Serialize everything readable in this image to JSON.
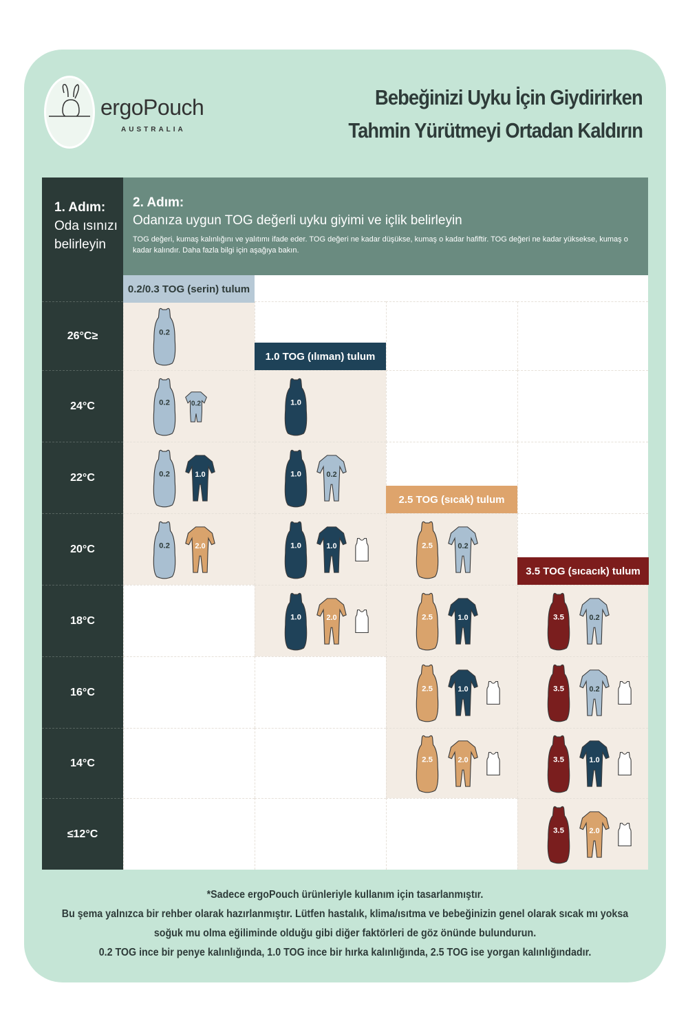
{
  "brand": {
    "name": "ergoPouch",
    "sub": "AUSTRALIA"
  },
  "title": [
    "Bebeğinizi Uyku İçin Giydirirken",
    "Tahmin Yürütmeyi Ortadan Kaldırın"
  ],
  "step1": {
    "label": "1. Adım:",
    "text": "Oda ısınızı belirleyin"
  },
  "step2": {
    "label": "2. Adım:",
    "subtitle": "Odanıza uygun TOG değerli uyku giyimi ve içlik belirleyin",
    "note": "TOG değeri, kumaş kalınlığını ve yalıtımı ifade eder. TOG değeri ne kadar düşükse, kumaş o kadar hafiftir. TOG değeri ne kadar yüksekse, kumaş o kadar kalındır. Daha fazla bilgi için aşağıya bakın."
  },
  "colors": {
    "0.2": "#a9bfd1",
    "1.0": "#1f4259",
    "2.0": "#d9a36c",
    "2.5": "#d9a36c",
    "3.5": "#7a1e1e",
    "vest": "#ffffff"
  },
  "columns": [
    {
      "label": "0.2/0.3 TOG (serin) tulum",
      "bg": "#b7c9d6",
      "fg": "#2e3b39"
    },
    {
      "label": "1.0 TOG (ılıman) tulum",
      "bg": "#1e4258",
      "fg": "#ffffff"
    },
    {
      "label": "2.5 TOG (sıcak) tulum",
      "bg": "#dea46c",
      "fg": "#ffffff"
    },
    {
      "label": "3.5 TOG (sıcacık) tulum",
      "bg": "#7d1d1c",
      "fg": "#ffffff"
    }
  ],
  "rows": [
    {
      "temp": "26°C≥",
      "cells": [
        [
          [
            "bag",
            "0.2"
          ]
        ],
        null,
        null,
        null
      ]
    },
    {
      "temp": "24°C",
      "cells": [
        [
          [
            "bag",
            "0.2"
          ],
          [
            "tee",
            "0.2"
          ]
        ],
        [
          [
            "bag",
            "1.0"
          ]
        ],
        null,
        null
      ]
    },
    {
      "temp": "22°C",
      "cells": [
        [
          [
            "bag",
            "0.2"
          ],
          [
            "onesie",
            "1.0"
          ]
        ],
        [
          [
            "bag",
            "1.0"
          ],
          [
            "onesie",
            "0.2"
          ]
        ],
        null,
        null
      ]
    },
    {
      "temp": "20°C",
      "cells": [
        [
          [
            "bag",
            "0.2"
          ],
          [
            "onesie",
            "2.0"
          ]
        ],
        [
          [
            "bag",
            "1.0"
          ],
          [
            "onesie",
            "1.0"
          ],
          [
            "vest",
            ""
          ]
        ],
        [
          [
            "bag",
            "2.5"
          ],
          [
            "onesie",
            "0.2"
          ]
        ],
        null
      ]
    },
    {
      "temp": "18°C",
      "cells": [
        null,
        [
          [
            "bag",
            "1.0"
          ],
          [
            "onesie",
            "2.0"
          ],
          [
            "vest",
            ""
          ]
        ],
        [
          [
            "bag",
            "2.5"
          ],
          [
            "onesie",
            "1.0"
          ]
        ],
        [
          [
            "bag",
            "3.5"
          ],
          [
            "onesie",
            "0.2"
          ]
        ]
      ]
    },
    {
      "temp": "16°C",
      "cells": [
        null,
        null,
        [
          [
            "bag",
            "2.5"
          ],
          [
            "onesie",
            "1.0"
          ],
          [
            "vest",
            ""
          ]
        ],
        [
          [
            "bag",
            "3.5"
          ],
          [
            "onesie",
            "0.2"
          ],
          [
            "vest",
            ""
          ]
        ]
      ]
    },
    {
      "temp": "14°C",
      "cells": [
        null,
        null,
        [
          [
            "bag",
            "2.5"
          ],
          [
            "onesie",
            "2.0"
          ],
          [
            "vest",
            ""
          ]
        ],
        [
          [
            "bag",
            "3.5"
          ],
          [
            "onesie",
            "1.0"
          ],
          [
            "vest",
            ""
          ]
        ]
      ]
    },
    {
      "temp": "≤12°C",
      "cells": [
        null,
        null,
        null,
        [
          [
            "bag",
            "3.5"
          ],
          [
            "onesie",
            "2.0"
          ],
          [
            "vest",
            ""
          ]
        ]
      ]
    }
  ],
  "footer": [
    "*Sadece ergoPouch ürünleriyle kullanım için tasarlanmıştır.",
    "Bu şema yalnızca bir rehber olarak hazırlanmıştır. Lütfen hastalık, klima/ısıtma ve bebeğinizin genel olarak sıcak mı yoksa",
    "soğuk mu olma eğiliminde olduğu gibi diğer faktörleri de göz önünde bulundurun.",
    "0.2 TOG ince bir penye kalınlığında, 1.0 TOG ince bir hırka kalınlığında, 2.5 TOG ise yorgan kalınlığındadır."
  ]
}
